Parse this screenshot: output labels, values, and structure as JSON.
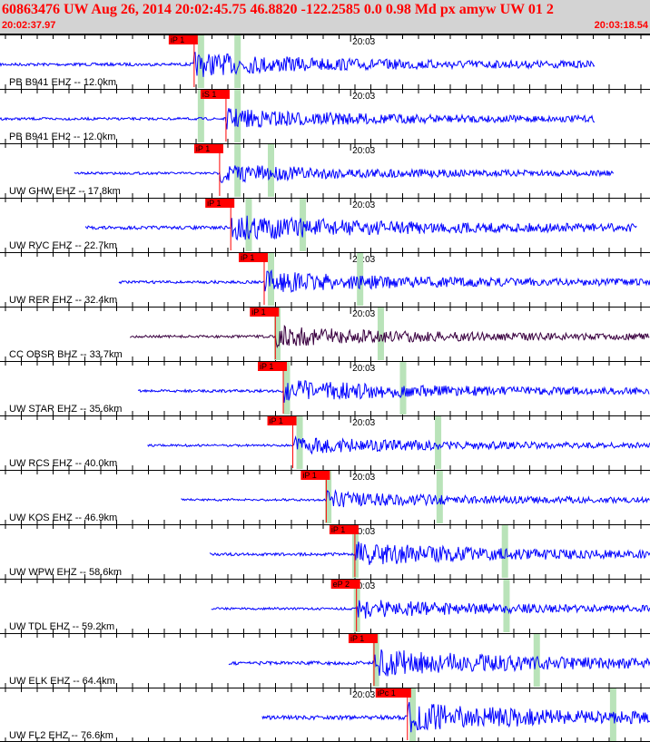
{
  "header": {
    "title": "60863476 UW Aug 26, 2014 20:02:45.75   46.8820 -122.2585  0.0 0.98 Md px amyw UW 01   2",
    "start_time": "20:02:37.97",
    "end_time": "20:03:18.54"
  },
  "colors": {
    "header_bg": "#d3d3d3",
    "header_text": "#ff0000",
    "trace": "#0000ff",
    "trace_alt": "#3a0040",
    "pick_bg": "#ff0000",
    "marker_band": "#b9e3b9",
    "pick_line": "#ff0000"
  },
  "chart_data": {
    "type": "line",
    "x_range": [
      "20:02:37.97",
      "20:03:18.54"
    ],
    "minute_mark_label": "20:03",
    "series": [
      {
        "name": "PB B941 EHZ -- 12.0km",
        "pick": "iP 1",
        "pick_time": 12.2,
        "marker_times": [
          12.6,
          14.9
        ],
        "end_time": 37.4,
        "color": "trace",
        "amp": 14
      },
      {
        "name": "PB B941 EH2 -- 12.0km",
        "pick": "iS 1",
        "pick_time": 14.2,
        "marker_times": [
          12.6,
          14.9
        ],
        "end_time": 37.4,
        "color": "trace",
        "amp": 12
      },
      {
        "name": "UW GHW EHZ -- 17.8km",
        "pick": "iP 1",
        "pick_time": 13.8,
        "marker_times": [
          14.9,
          17.0
        ],
        "end_time": 38.6,
        "color": "trace",
        "amp": 11
      },
      {
        "name": "UW RVC EHZ -- 22.7km",
        "pick": "iP 1",
        "pick_time": 14.5,
        "marker_times": [
          15.6,
          19.0
        ],
        "end_time": 40.0,
        "color": "trace",
        "amp": 16
      },
      {
        "name": "UW RER EHZ -- 32.4km",
        "pick": "iP 1",
        "pick_time": 16.6,
        "marker_times": [
          17.0,
          22.6
        ],
        "end_time": 42.0,
        "color": "trace",
        "amp": 13
      },
      {
        "name": "CC OBSR BHZ -- 33.7km",
        "pick": "iP 1",
        "pick_time": 17.3,
        "marker_times": [
          17.4,
          23.9
        ],
        "end_time": 42.3,
        "color": "trace_alt",
        "amp": 12
      },
      {
        "name": "UW STAR EHZ -- 35.6km",
        "pick": "iP 1",
        "pick_time": 17.8,
        "marker_times": [
          18.0,
          25.3
        ],
        "end_time": 42.6,
        "color": "trace",
        "amp": 13
      },
      {
        "name": "UW RCS EHZ -- 40.0km",
        "pick": "iP 1",
        "pick_time": 18.4,
        "marker_times": [
          18.8,
          27.5
        ],
        "end_time": 43.3,
        "color": "trace",
        "amp": 10
      },
      {
        "name": "UW KOS EHZ -- 46.9km",
        "pick": "iP 1",
        "pick_time": 20.5,
        "marker_times": [
          20.6,
          27.6
        ],
        "end_time": 44.8,
        "color": "trace",
        "amp": 10
      },
      {
        "name": "UW WPW EHZ -- 58.6km",
        "pick": "iP 1",
        "pick_time": 22.3,
        "marker_times": [
          22.3,
          31.7
        ],
        "end_time": 47.4,
        "color": "trace",
        "amp": 14
      },
      {
        "name": "UW TDL EHZ -- 59.2km",
        "pick": "eP 2",
        "pick_time": 22.4,
        "marker_times": [
          22.4,
          31.8
        ],
        "end_time": 47.4,
        "color": "trace",
        "amp": 11
      },
      {
        "name": "UW ELK EHZ -- 64.4km",
        "pick": "iP 1",
        "pick_time": 23.5,
        "marker_times": [
          23.6,
          33.7
        ],
        "end_time": 48.8,
        "color": "trace",
        "amp": 17
      },
      {
        "name": "UW FL2 EHZ -- 76.6km",
        "pick": "iPc 1",
        "pick_time": 25.6,
        "marker_times": [
          25.9,
          38.5
        ],
        "end_time": 51.0,
        "color": "trace",
        "amp": 18
      }
    ]
  }
}
